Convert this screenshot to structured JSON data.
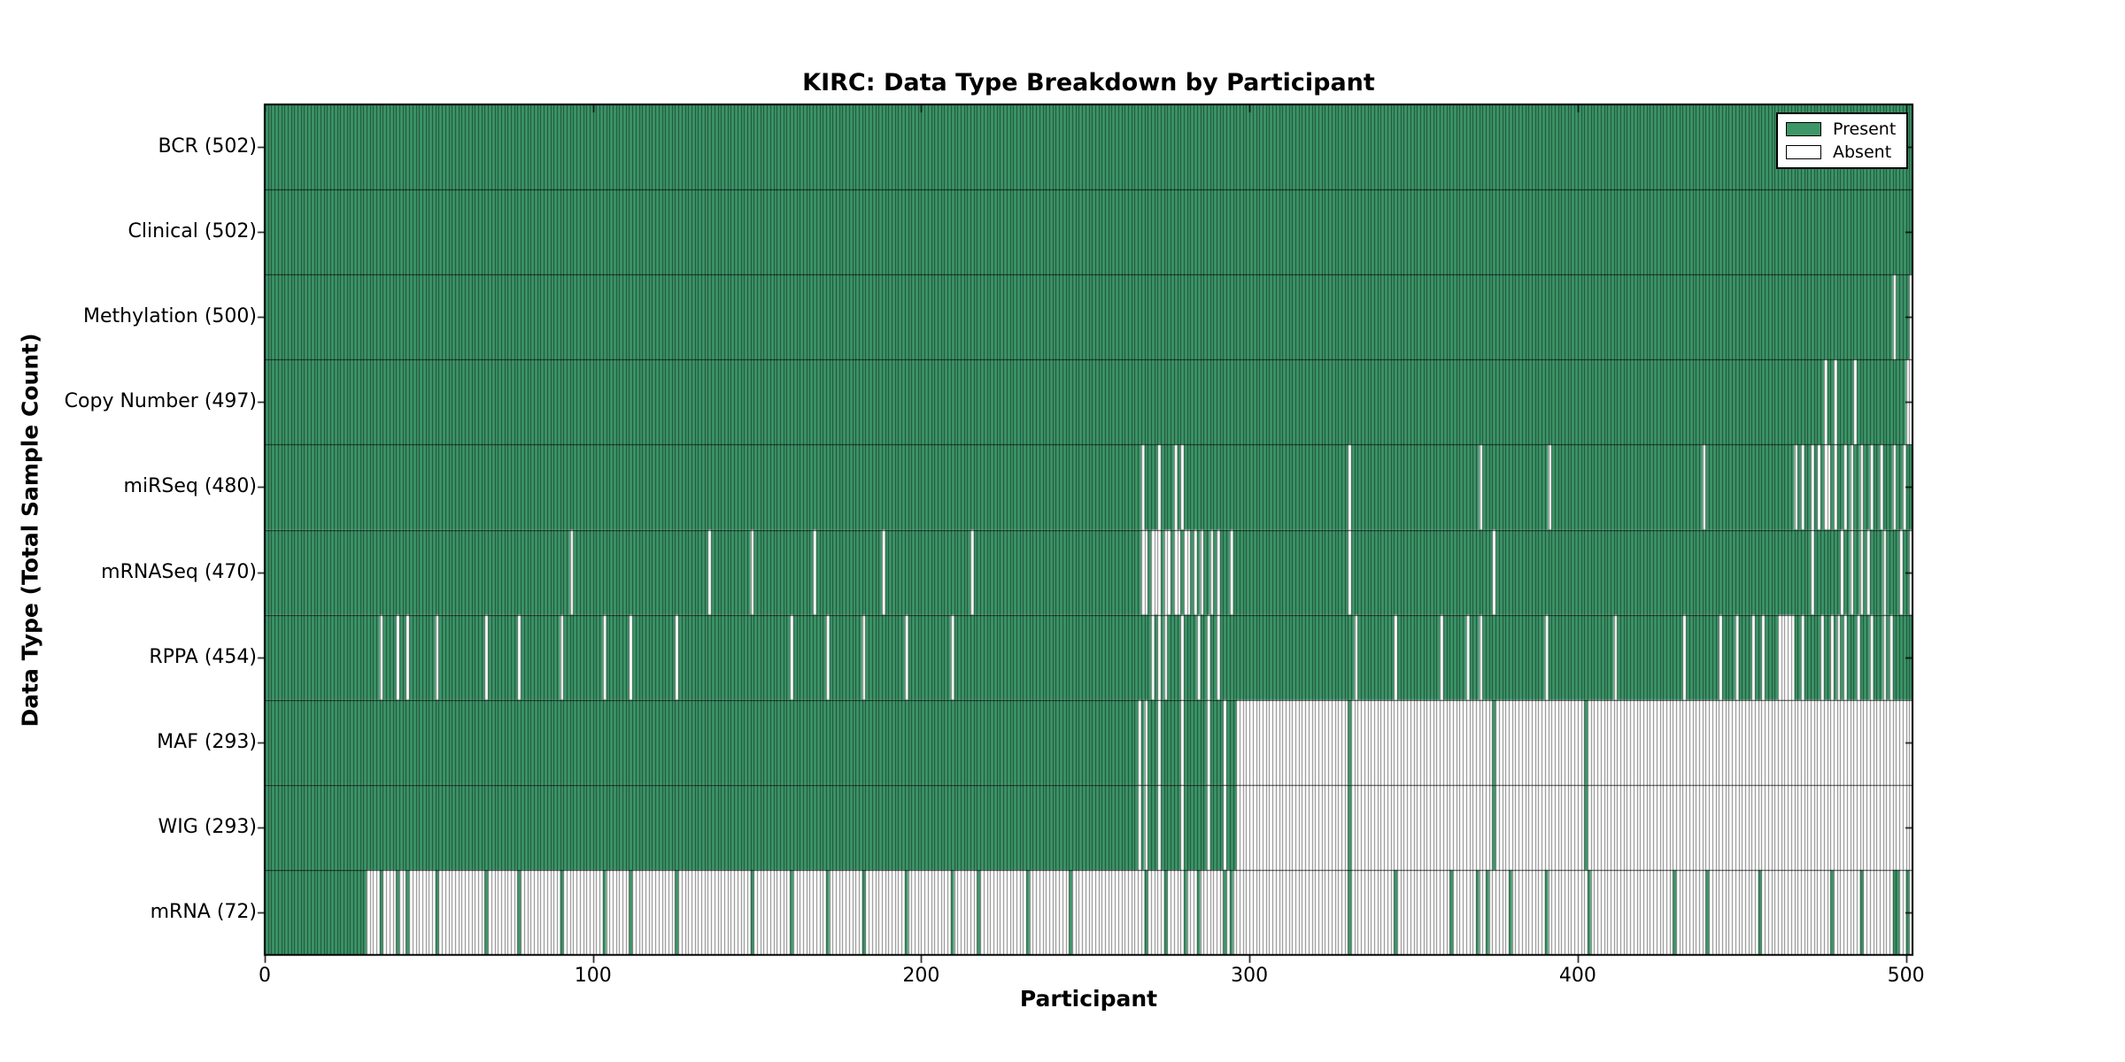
{
  "figure": {
    "title": "KIRC: Data Type Breakdown by Participant",
    "x_axis_label": "Participant",
    "y_axis_label": "Data Type (Total Sample Count)"
  },
  "legend": {
    "items": [
      {
        "label": "Present",
        "swatch_color": "#3C9668"
      },
      {
        "label": "Absent",
        "swatch_color": "#FFFFFF"
      }
    ]
  },
  "chart_data": {
    "type": "heatmap",
    "title": "KIRC: Data Type Breakdown by Participant",
    "xlabel": "Participant",
    "ylabel": "Data Type (Total Sample Count)",
    "x_ticks": [
      0,
      100,
      200,
      300,
      400,
      500
    ],
    "x_range": [
      0,
      502
    ],
    "n_participants": 502,
    "legend_position": "upper right",
    "grid": false,
    "colors": {
      "present": "#3C9668",
      "absent": "#FFFFFF",
      "cell_edge": "rgba(0,0,0,0.5)",
      "row_separator": "rgba(0,0,0,0.75)",
      "frame": "#000000"
    },
    "rows": [
      {
        "label": "BCR (502)",
        "data_type": "BCR",
        "present_count": 502,
        "absent": []
      },
      {
        "label": "Clinical (502)",
        "data_type": "Clinical",
        "present_count": 502,
        "absent": []
      },
      {
        "label": "Methylation (500)",
        "data_type": "Methylation",
        "present_count": 500,
        "absent": [
          [
            496
          ],
          [
            501
          ]
        ]
      },
      {
        "label": "Copy Number (497)",
        "data_type": "Copy Number",
        "present_count": 497,
        "absent": [
          [
            475
          ],
          [
            478
          ],
          [
            484
          ],
          [
            500,
            501
          ]
        ]
      },
      {
        "label": "miRSeq (480)",
        "data_type": "miRSeq",
        "present_count": 480,
        "absent": [
          [
            267
          ],
          [
            272
          ],
          [
            277
          ],
          [
            279
          ],
          [
            330
          ],
          [
            370
          ],
          [
            391
          ],
          [
            438
          ],
          [
            466
          ],
          [
            468
          ],
          [
            471
          ],
          [
            473
          ],
          [
            475,
            476
          ],
          [
            478
          ],
          [
            481
          ],
          [
            483
          ],
          [
            486
          ],
          [
            489
          ],
          [
            492
          ],
          [
            496
          ],
          [
            499
          ]
        ]
      },
      {
        "label": "mRNASeq (470)",
        "data_type": "mRNASeq",
        "present_count": 470,
        "absent": [
          [
            93
          ],
          [
            135
          ],
          [
            148
          ],
          [
            167
          ],
          [
            188
          ],
          [
            215
          ],
          [
            267,
            268
          ],
          [
            270,
            272
          ],
          [
            274,
            275
          ],
          [
            277,
            278
          ],
          [
            280,
            281
          ],
          [
            283
          ],
          [
            285
          ],
          [
            288
          ],
          [
            290
          ],
          [
            294
          ],
          [
            330
          ],
          [
            374
          ],
          [
            471
          ],
          [
            480
          ],
          [
            483
          ],
          [
            486
          ],
          [
            488
          ],
          [
            493
          ],
          [
            498
          ],
          [
            501
          ]
        ]
      },
      {
        "label": "RPPA (454)",
        "data_type": "RPPA",
        "present_count": 454,
        "absent": [
          [
            35
          ],
          [
            40
          ],
          [
            43
          ],
          [
            52
          ],
          [
            67
          ],
          [
            77
          ],
          [
            90
          ],
          [
            103
          ],
          [
            111
          ],
          [
            125
          ],
          [
            160
          ],
          [
            171
          ],
          [
            182
          ],
          [
            195
          ],
          [
            209
          ],
          [
            270
          ],
          [
            272
          ],
          [
            274
          ],
          [
            279
          ],
          [
            284
          ],
          [
            287
          ],
          [
            290
          ],
          [
            332
          ],
          [
            344
          ],
          [
            358
          ],
          [
            366
          ],
          [
            370
          ],
          [
            390
          ],
          [
            411
          ],
          [
            432
          ],
          [
            443
          ],
          [
            448
          ],
          [
            453
          ],
          [
            456
          ],
          [
            461,
            465
          ],
          [
            468
          ],
          [
            474
          ],
          [
            477
          ],
          [
            479
          ],
          [
            481
          ],
          [
            485
          ],
          [
            489
          ],
          [
            493
          ],
          [
            495
          ]
        ]
      },
      {
        "label": "MAF (293)",
        "data_type": "MAF",
        "present_count": 293,
        "absent": [
          [
            266
          ],
          [
            268
          ],
          [
            272
          ],
          [
            279
          ],
          [
            287
          ],
          [
            292
          ],
          [
            296,
            329
          ],
          [
            331,
            373
          ],
          [
            375,
            401
          ],
          [
            403,
            501
          ]
        ]
      },
      {
        "label": "WIG (293)",
        "data_type": "WIG",
        "present_count": 293,
        "absent": [
          [
            266
          ],
          [
            268
          ],
          [
            272
          ],
          [
            279
          ],
          [
            287
          ],
          [
            292
          ],
          [
            296,
            329
          ],
          [
            331,
            373
          ],
          [
            375,
            401
          ],
          [
            403,
            501
          ]
        ]
      },
      {
        "label": "mRNA (72)",
        "data_type": "mRNA",
        "present_count": 72,
        "present": [
          [
            0,
            30
          ],
          [
            35
          ],
          [
            40
          ],
          [
            43
          ],
          [
            52
          ],
          [
            67
          ],
          [
            77
          ],
          [
            90
          ],
          [
            103
          ],
          [
            111
          ],
          [
            125
          ],
          [
            148
          ],
          [
            160
          ],
          [
            171
          ],
          [
            182
          ],
          [
            195
          ],
          [
            209
          ],
          [
            217
          ],
          [
            232
          ],
          [
            245
          ],
          [
            268
          ],
          [
            274
          ],
          [
            280
          ],
          [
            284
          ],
          [
            292
          ],
          [
            294
          ],
          [
            330
          ],
          [
            344
          ],
          [
            361
          ],
          [
            369
          ],
          [
            372
          ],
          [
            379
          ],
          [
            390
          ],
          [
            403
          ],
          [
            429
          ],
          [
            439
          ],
          [
            455
          ],
          [
            477
          ],
          [
            486
          ],
          [
            496,
            497
          ],
          [
            500
          ]
        ]
      }
    ]
  }
}
